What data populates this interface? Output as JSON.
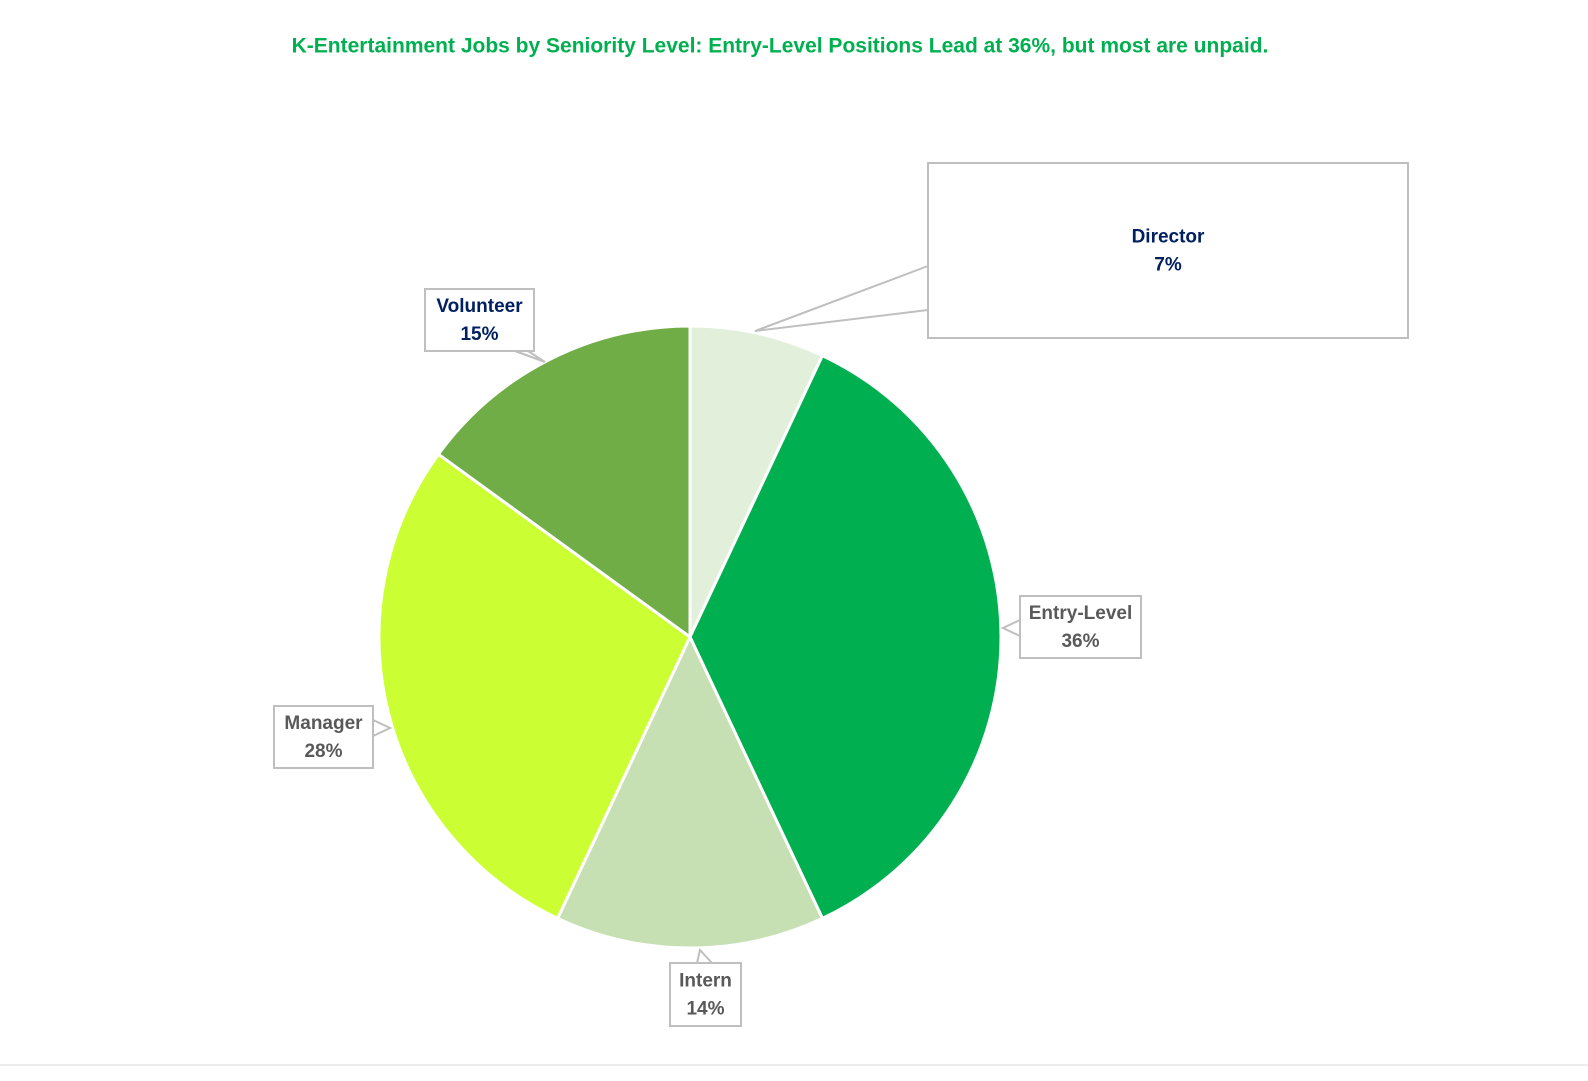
{
  "chart_data": {
    "type": "pie",
    "title": "K-Entertainment Jobs by Seniority Level: Entry-Level Positions Lead at 36%, but most are unpaid.",
    "categories": [
      "Director",
      "Entry-Level",
      "Intern",
      "Manager",
      "Volunteer"
    ],
    "values": [
      7,
      36,
      14,
      28,
      15
    ],
    "value_labels": [
      "7%",
      "36%",
      "14%",
      "28%",
      "15%"
    ],
    "colors": [
      "#e2efda",
      "#00b050",
      "#c6e0b4",
      "#ccff33",
      "#70ad47"
    ],
    "label_colors": [
      "#002060",
      "#595959",
      "#595959",
      "#595959",
      "#002060"
    ],
    "title_color": "#00b050"
  }
}
